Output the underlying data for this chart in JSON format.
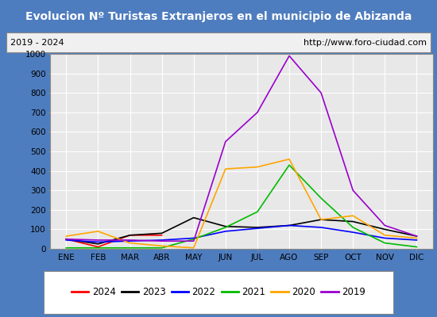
{
  "title": "Evolucion Nº Turistas Extranjeros en el municipio de Abizanda",
  "subtitle_left": "2019 - 2024",
  "subtitle_right": "http://www.foro-ciudad.com",
  "months": [
    "ENE",
    "FEB",
    "MAR",
    "ABR",
    "MAY",
    "JUN",
    "JUL",
    "AGO",
    "SEP",
    "OCT",
    "NOV",
    "DIC"
  ],
  "ylim": [
    0,
    1000
  ],
  "yticks": [
    0,
    100,
    200,
    300,
    400,
    500,
    600,
    700,
    800,
    900,
    1000
  ],
  "series": {
    "2024": {
      "color": "#ff0000",
      "values": [
        50,
        10,
        70,
        70,
        null,
        null,
        null,
        null,
        null,
        null,
        null,
        null
      ]
    },
    "2023": {
      "color": "#000000",
      "values": [
        50,
        25,
        70,
        80,
        160,
        115,
        110,
        120,
        150,
        140,
        100,
        65
      ]
    },
    "2022": {
      "color": "#0000ff",
      "values": [
        45,
        35,
        40,
        45,
        55,
        90,
        105,
        120,
        110,
        85,
        55,
        45
      ]
    },
    "2021": {
      "color": "#00bb00",
      "values": [
        5,
        5,
        5,
        5,
        50,
        110,
        190,
        430,
        260,
        110,
        30,
        10
      ]
    },
    "2020": {
      "color": "#ffa500",
      "values": [
        65,
        90,
        30,
        15,
        5,
        410,
        420,
        460,
        150,
        170,
        70,
        55
      ]
    },
    "2019": {
      "color": "#9900cc",
      "values": [
        50,
        45,
        45,
        40,
        40,
        550,
        700,
        990,
        800,
        300,
        120,
        65
      ]
    }
  },
  "title_bgcolor": "#4e7dbf",
  "title_color": "#ffffff",
  "plot_bgcolor": "#e8e8e8",
  "outer_bgcolor": "#4e7dbf",
  "grid_color": "#ffffff",
  "subtitle_box_color": "#cccccc",
  "legend_order": [
    "2024",
    "2023",
    "2022",
    "2021",
    "2020",
    "2019"
  ]
}
